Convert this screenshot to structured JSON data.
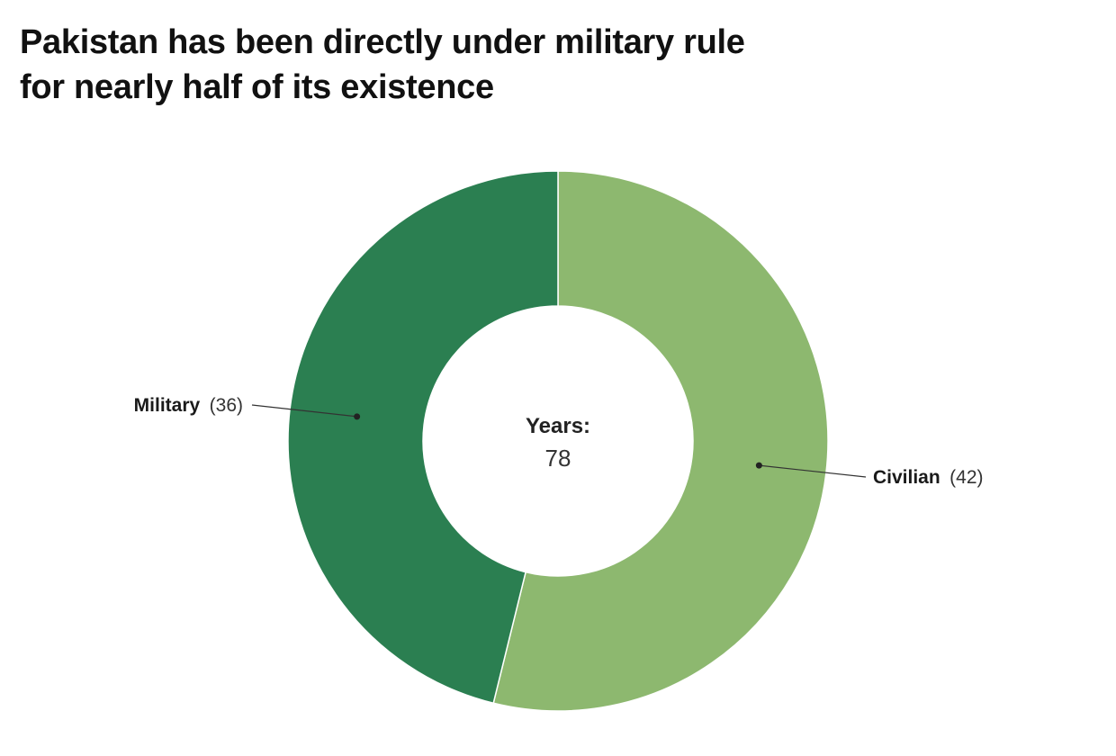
{
  "chart_data": {
    "type": "pie",
    "style": "donut",
    "title_lines": [
      "Pakistan has been directly under military rule",
      "for nearly half of its existence"
    ],
    "center": {
      "label": "Years:",
      "value": "78"
    },
    "slices": [
      {
        "name": "Civilian",
        "value": 42,
        "value_text": "(42)",
        "color": "#8db86f"
      },
      {
        "name": "Military",
        "value": 36,
        "value_text": "(36)",
        "color": "#2b7f51"
      }
    ],
    "legend": "none",
    "slice_border_color": "#ffffff"
  }
}
